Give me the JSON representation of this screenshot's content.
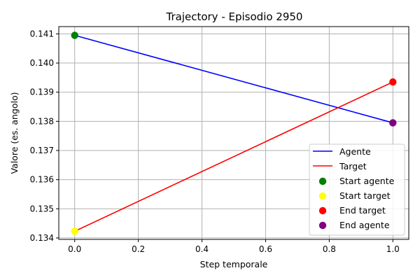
{
  "chart_data": {
    "type": "line",
    "title": "Trajectory - Episodio 2950",
    "xlabel": "Step temporale",
    "ylabel": "Valore (es. angolo)",
    "xlim": [
      -0.05,
      1.05
    ],
    "ylim": [
      0.13395,
      0.14125
    ],
    "xticks": [
      0.0,
      0.2,
      0.4,
      0.6,
      0.8,
      1.0
    ],
    "xtick_labels": [
      "0.0",
      "0.2",
      "0.4",
      "0.6",
      "0.8",
      "1.0"
    ],
    "yticks": [
      0.134,
      0.135,
      0.136,
      0.137,
      0.138,
      0.139,
      0.14,
      0.141
    ],
    "ytick_labels": [
      "0.134",
      "0.135",
      "0.136",
      "0.137",
      "0.138",
      "0.139",
      "0.140",
      "0.141"
    ],
    "grid": true,
    "legend_position": "lower-right",
    "series": [
      {
        "name": "Agente",
        "kind": "line",
        "color": "#0000ff",
        "x": [
          0,
          1
        ],
        "y": [
          0.14095,
          0.13795
        ]
      },
      {
        "name": "Target",
        "kind": "line",
        "color": "#ff0000",
        "x": [
          0,
          1
        ],
        "y": [
          0.13423,
          0.13935
        ]
      }
    ],
    "markers": [
      {
        "name": "Start agente",
        "color": "#008000",
        "x": 0,
        "y": 0.14095
      },
      {
        "name": "Start target",
        "color": "#ffff00",
        "x": 0,
        "y": 0.13423
      },
      {
        "name": "End target",
        "color": "#ff0000",
        "x": 1,
        "y": 0.13935
      },
      {
        "name": "End agente",
        "color": "#800080",
        "x": 1,
        "y": 0.13795
      }
    ]
  }
}
